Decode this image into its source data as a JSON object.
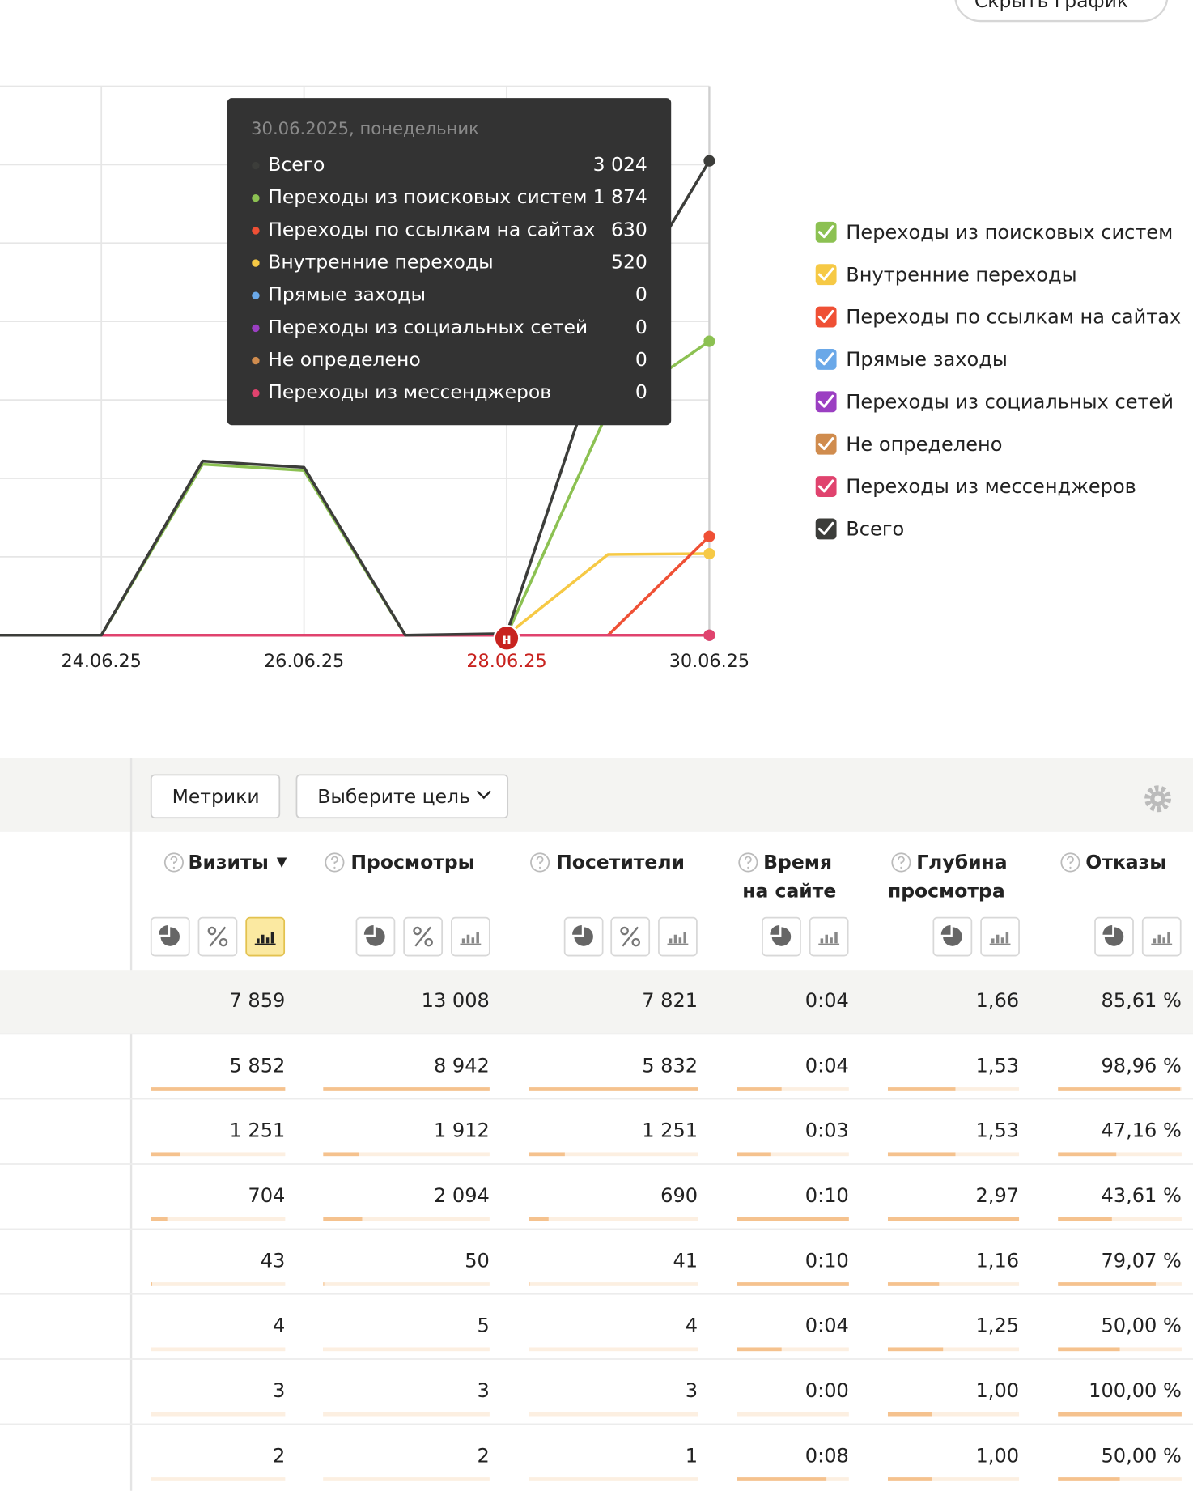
{
  "hide_chart_button": "Скрыть график",
  "chart_data": {
    "type": "line",
    "categories": [
      null,
      "24.06.25",
      null,
      "26.06.25",
      null,
      "28.06.25",
      null,
      "30.06.25"
    ],
    "ylim": [
      0,
      3500
    ],
    "yticks": [
      0,
      500,
      1000,
      1500,
      2000,
      2500,
      3000,
      3500
    ],
    "grid": true,
    "legend": "right",
    "markers": [
      {
        "x": "28.06.25",
        "label": "н",
        "color": "#c8231f"
      }
    ],
    "series": [
      {
        "name": "Переходы из поисковых систем",
        "color": "#8cc152",
        "values": [
          0,
          0,
          1090,
          1050,
          0,
          0,
          1430,
          1874
        ]
      },
      {
        "name": "Внутренние переходы",
        "color": "#f6c945",
        "values": [
          0,
          0,
          0,
          0,
          0,
          0,
          515,
          520
        ]
      },
      {
        "name": "Переходы по ссылкам на сайтах",
        "color": "#ef5035",
        "values": [
          0,
          0,
          0,
          0,
          0,
          0,
          0,
          630
        ]
      },
      {
        "name": "Прямые заходы",
        "color": "#6aa8e8",
        "values": [
          0,
          0,
          0,
          0,
          0,
          0,
          0,
          0
        ]
      },
      {
        "name": "Переходы из социальных сетей",
        "color": "#9b3fc2",
        "values": [
          0,
          0,
          0,
          0,
          0,
          0,
          0,
          0
        ]
      },
      {
        "name": "Не определено",
        "color": "#d08c4e",
        "values": [
          0,
          0,
          0,
          0,
          0,
          0,
          0,
          0
        ]
      },
      {
        "name": "Переходы из мессенджеров",
        "color": "#e0436e",
        "values": [
          0,
          0,
          0,
          0,
          0,
          0,
          0,
          0
        ]
      },
      {
        "name": "Всего",
        "color": "#3c3d3a",
        "values": [
          0,
          0,
          1110,
          1070,
          0,
          10,
          1940,
          3024
        ]
      }
    ]
  },
  "tooltip": {
    "title": "30.06.2025, понедельник",
    "rows": [
      {
        "name": "Всего",
        "value": "3 024",
        "color": "#3c3d3a"
      },
      {
        "name": "Переходы из поисковых систем",
        "value": "1 874",
        "color": "#8cc152"
      },
      {
        "name": "Переходы по ссылкам на сайтах",
        "value": "630",
        "color": "#ef5035"
      },
      {
        "name": "Внутренние переходы",
        "value": "520",
        "color": "#f6c945"
      },
      {
        "name": "Прямые заходы",
        "value": "0",
        "color": "#6aa8e8"
      },
      {
        "name": "Переходы из социальных сетей",
        "value": "0",
        "color": "#9b3fc2"
      },
      {
        "name": "Не определено",
        "value": "0",
        "color": "#d08c4e"
      },
      {
        "name": "Переходы из мессенджеров",
        "value": "0",
        "color": "#e0436e"
      }
    ]
  },
  "table": {
    "buttons": [
      "Метрики",
      "Выберите цель"
    ],
    "sort_indicator": "▼",
    "headers": [
      [
        "Визиты"
      ],
      [
        "Просмотры"
      ],
      [
        "Посетители"
      ],
      [
        "Время",
        "на сайте"
      ],
      [
        "Глубина",
        "просмотра"
      ],
      [
        "Отказы"
      ]
    ],
    "rows": [
      [
        "7 859",
        "13 008",
        "7 821",
        "0:04",
        "1,66",
        "85,61 %"
      ],
      [
        "5 852",
        "8 942",
        "5 832",
        "0:04",
        "1,53",
        "98,96 %"
      ],
      [
        "1 251",
        "1 912",
        "1 251",
        "0:03",
        "1,53",
        "47,16 %"
      ],
      [
        "704",
        "2 094",
        "690",
        "0:10",
        "2,97",
        "43,61 %"
      ],
      [
        "43",
        "50",
        "41",
        "0:10",
        "1,16",
        "79,07 %"
      ],
      [
        "4",
        "5",
        "4",
        "0:04",
        "1,25",
        "50,00 %"
      ],
      [
        "3",
        "3",
        "3",
        "0:00",
        "1,00",
        "100,00 %"
      ],
      [
        "2",
        "2",
        "1",
        "0:08",
        "1,00",
        "50,00 %"
      ]
    ]
  }
}
